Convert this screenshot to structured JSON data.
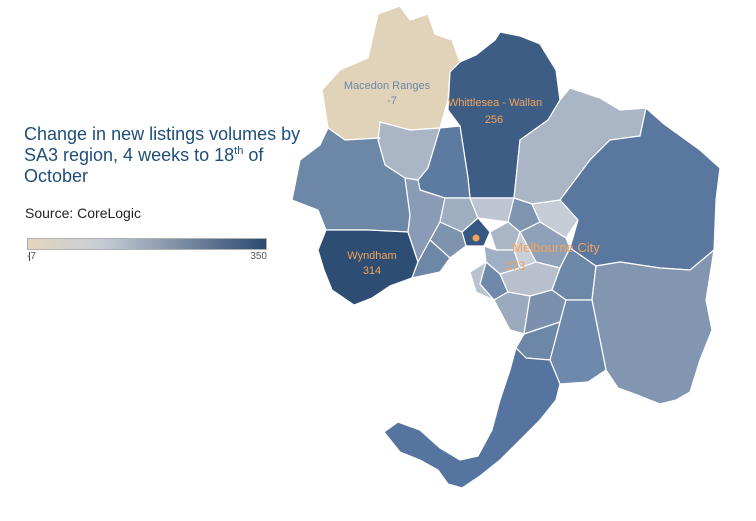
{
  "title": {
    "line": "Change in new listings volumes by SA3 region, 4 weeks to 18",
    "sup": "th",
    "tail": " of October"
  },
  "source": "Source: CoreLogic",
  "legend": {
    "min": "-7",
    "max": "350",
    "color_low": "#e3d5bd",
    "color_mid": "#c9ced6",
    "color_high": "#2b4a70"
  },
  "map_labels": [
    {
      "name": "Macedon Ranges",
      "value": "-7",
      "color": "#6d87a7"
    },
    {
      "name": "Whittlesea - Wallan",
      "value": "256",
      "color": "#f2a35c"
    },
    {
      "name": "Wyndham",
      "value": "314",
      "color": "#f2a35c"
    },
    {
      "name": "Melbourne City",
      "value": "273",
      "color": "#f2a35c"
    }
  ],
  "colors": {
    "highlight_dot": "#f2a35c",
    "title_text": "#1f4e79"
  }
}
